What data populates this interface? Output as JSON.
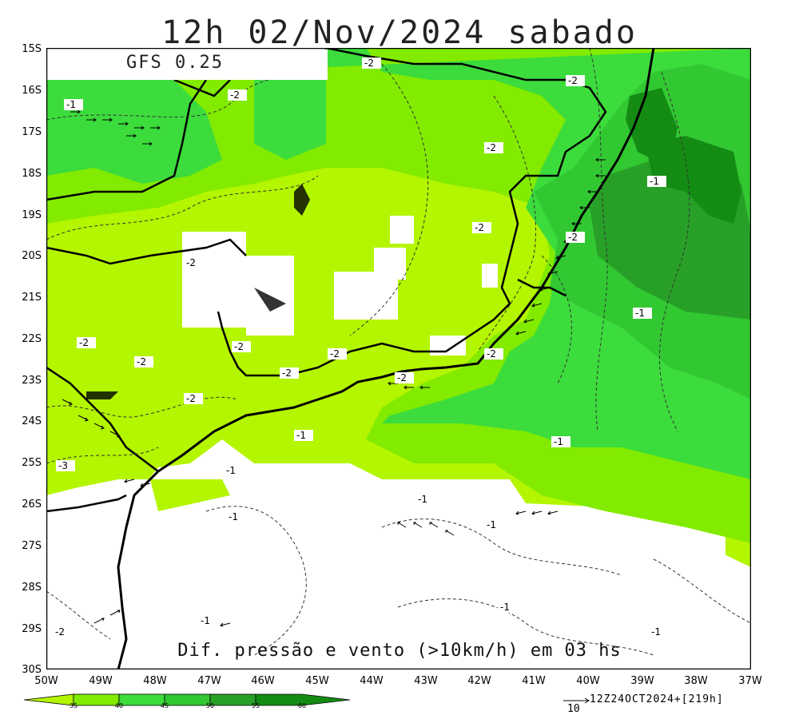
{
  "title": "12h 02/Nov/2024 sabado",
  "model": "GFS 0.25",
  "footer": "Dif. pressão e vento (>10km/h) em 03 hs",
  "latitudes": [
    "15S",
    "16S",
    "17S",
    "18S",
    "19S",
    "20S",
    "21S",
    "22S",
    "23S",
    "24S",
    "25S",
    "26S",
    "27S",
    "28S",
    "29S",
    "30S"
  ],
  "longitudes": [
    "50W",
    "49W",
    "48W",
    "47W",
    "46W",
    "45W",
    "44W",
    "43W",
    "42W",
    "41W",
    "40W",
    "39W",
    "38W",
    "37W"
  ],
  "colorbar": {
    "ticks": [
      "35",
      "40",
      "45",
      "50",
      "55",
      "60"
    ],
    "colors": [
      "#b4f500",
      "#82eb00",
      "#3cdc3c",
      "#32c832",
      "#28a028",
      "#148c14"
    ]
  },
  "wind_reference": {
    "value": "10",
    "timestamp": "12Z24OCT2024+[219h]"
  },
  "contour_labels": [
    "-2",
    "-2",
    "-1",
    "-2",
    "-2",
    "-2",
    "-1",
    "-2",
    "-2",
    "-2",
    "-2",
    "-2",
    "-2",
    "-2",
    "-2",
    "-2",
    "-2",
    "-1",
    "-1",
    "-1",
    "-3",
    "-1",
    "-1",
    "-1",
    "-1",
    "-1",
    "-1",
    "-1",
    "-2"
  ],
  "colors": {
    "lightest_green": "#b4f500",
    "light_green": "#82eb00",
    "green": "#3cdc3c",
    "mid_green": "#32c832",
    "dark_green": "#28a028",
    "darkest_green": "#148c14"
  }
}
